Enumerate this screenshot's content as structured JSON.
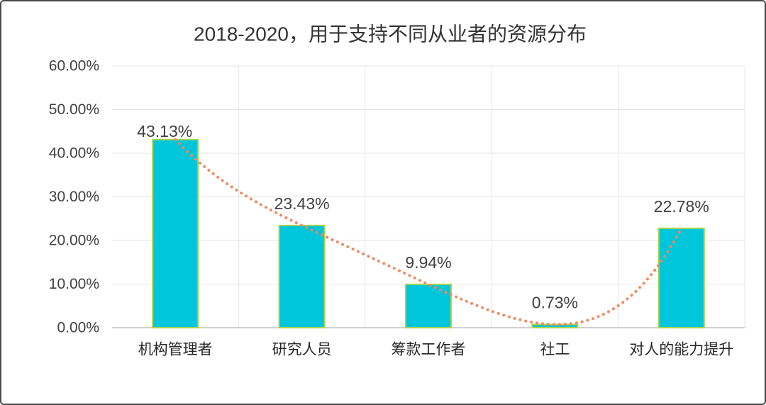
{
  "chart_data": {
    "type": "bar",
    "title": "2018-2020，用于支持不同从业者的资源分布",
    "categories": [
      "机构管理者",
      "研究人员",
      "筹款工作者",
      "社工",
      "对人的能力提升"
    ],
    "values": [
      43.13,
      23.43,
      9.94,
      0.73,
      22.78
    ],
    "data_labels": [
      "43.13%",
      "23.43%",
      "9.94%",
      "0.73%",
      "22.78%"
    ],
    "ylim": [
      0,
      60
    ],
    "ytick_labels": [
      "0.00%",
      "10.00%",
      "20.00%",
      "30.00%",
      "40.00%",
      "50.00%",
      "60.00%"
    ],
    "grid": true,
    "legend": "none",
    "trendline": {
      "type": "polynomial",
      "line_style": "dotted",
      "color": "#F0885E"
    },
    "colors": {
      "bar_fill": "#00C6DB",
      "bar_border": "#A8D44A",
      "grid": "#E6E6E6",
      "axis": "#BFBFBF",
      "frame": "#4A4A4A"
    }
  }
}
